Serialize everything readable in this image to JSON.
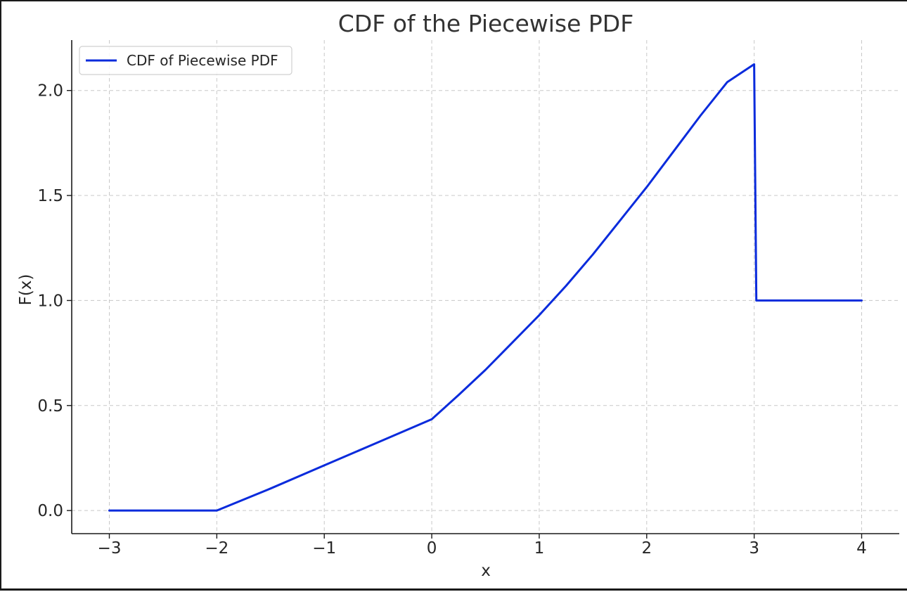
{
  "chart_data": {
    "type": "line",
    "title": "CDF of the Piecewise PDF",
    "xlabel": "x",
    "ylabel": "F(x)",
    "xlim": [
      -3.35,
      4.35
    ],
    "ylim": [
      -0.11,
      2.24
    ],
    "xticks": [
      -3,
      -2,
      -1,
      0,
      1,
      2,
      3,
      4
    ],
    "xtick_labels": [
      "−3",
      "−2",
      "−1",
      "0",
      "1",
      "2",
      "3",
      "4"
    ],
    "yticks": [
      0.0,
      0.5,
      1.0,
      1.5,
      2.0
    ],
    "ytick_labels": [
      "0.0",
      "0.5",
      "1.0",
      "1.5",
      "2.0"
    ],
    "grid": true,
    "legend_position": "top-left",
    "series": [
      {
        "name": "CDF of Piecewise PDF",
        "color": "#0a2bdc",
        "x": [
          -3,
          -2,
          -1.5,
          -1,
          -0.5,
          0,
          0.25,
          0.5,
          0.75,
          1,
          1.25,
          1.5,
          1.75,
          2,
          2.25,
          2.5,
          2.75,
          3,
          3.02,
          3.5,
          4
        ],
        "y": [
          0,
          0,
          0.105,
          0.215,
          0.325,
          0.435,
          0.55,
          0.67,
          0.8,
          0.93,
          1.07,
          1.22,
          1.38,
          1.54,
          1.71,
          1.88,
          2.04,
          2.125,
          1.0,
          1.0,
          1.0
        ]
      }
    ]
  }
}
